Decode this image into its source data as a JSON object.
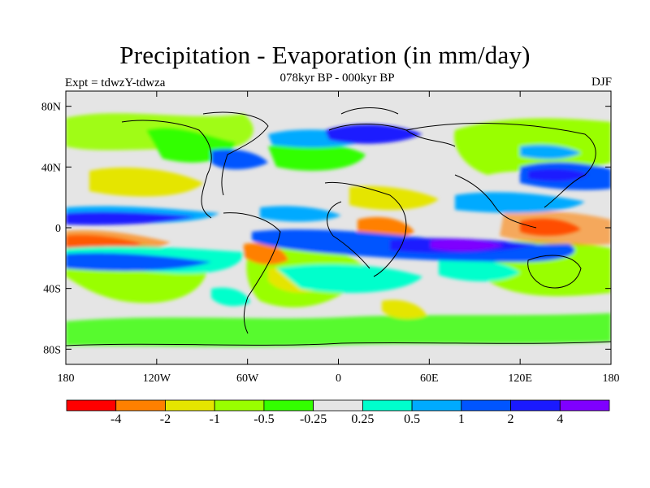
{
  "header": {
    "title": "Precipitation - Evaporation (in mm/day)",
    "subtitle": "078kyr BP - 000kyr BP",
    "experiment": "Expt = tdwzY-tdwza",
    "season": "DJF"
  },
  "axes": {
    "lat_labels": [
      "80N",
      "40N",
      "0",
      "40S",
      "80S"
    ],
    "lon_labels": [
      "180",
      "120W",
      "60W",
      "0",
      "60E",
      "120E",
      "180"
    ]
  },
  "colorbar": {
    "colors": [
      "#ff0000",
      "#ff8000",
      "#e5e500",
      "#99ff00",
      "#33ff00",
      "#e5e5e5",
      "#00ffcc",
      "#00aaff",
      "#0055ff",
      "#1a1aff",
      "#7f00ff"
    ],
    "labels": [
      "-4",
      "-2",
      "-1",
      "-0.5",
      "-0.25",
      "0.25",
      "0.5",
      "1",
      "2",
      "4"
    ]
  },
  "chart_data": {
    "type": "heatmap",
    "title": "Precipitation - Evaporation (in mm/day)",
    "subtitle": "078kyr BP - 000kyr BP",
    "projection": "cylindrical equidistant",
    "lon_range": [
      -180,
      180
    ],
    "lat_range": [
      -90,
      90
    ],
    "contour_levels": [
      -4,
      -2,
      -1,
      -0.5,
      -0.25,
      0.25,
      0.5,
      1,
      2,
      4
    ],
    "units": "mm/day",
    "regions": [
      {
        "lon": [
          -180,
          -140
        ],
        "lat": [
          -15,
          -5
        ],
        "value": -5
      },
      {
        "lon": [
          -180,
          -120
        ],
        "lat": [
          -28,
          -18
        ],
        "value": 2
      },
      {
        "lon": [
          -180,
          -110
        ],
        "lat": [
          2,
          8
        ],
        "value": 2
      },
      {
        "lon": [
          -60,
          -20
        ],
        "lat": [
          -15,
          -5
        ],
        "value": 3
      },
      {
        "lon": [
          0,
          30
        ],
        "lat": [
          -10,
          0
        ],
        "value": -2
      },
      {
        "lon": [
          30,
          100
        ],
        "lat": [
          -12,
          -4
        ],
        "value": 4
      },
      {
        "lon": [
          120,
          150
        ],
        "lat": [
          -5,
          5
        ],
        "value": -4
      },
      {
        "lon": [
          110,
          150
        ],
        "lat": [
          15,
          25
        ],
        "value": 2
      },
      {
        "lon": [
          -40,
          -10
        ],
        "lat": [
          -45,
          -30
        ],
        "value": -1
      },
      {
        "lon": [
          -120,
          -90
        ],
        "lat": [
          -35,
          -25
        ],
        "value": -1
      }
    ]
  }
}
